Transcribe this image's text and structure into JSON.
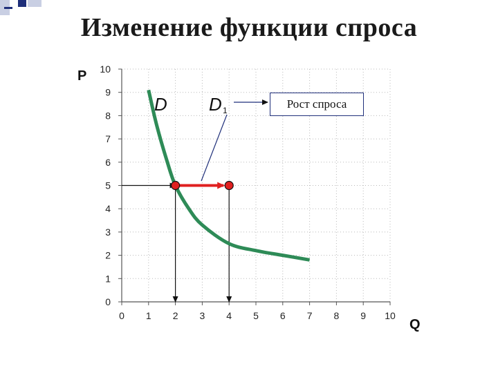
{
  "slide": {
    "title": "Изменение функции спроса"
  },
  "callout": {
    "text": "Рост спроса"
  },
  "chart_data": {
    "type": "line",
    "title": "Изменение функции спроса",
    "xlabel": "Q",
    "ylabel": "P",
    "xlim": [
      0,
      10
    ],
    "ylim": [
      0,
      10
    ],
    "x_ticks": [
      "0",
      "1",
      "2",
      "3",
      "4",
      "5",
      "6",
      "7",
      "8",
      "9",
      "10"
    ],
    "y_ticks": [
      "0",
      "1",
      "2",
      "3",
      "4",
      "5",
      "6",
      "7",
      "8",
      "9",
      "10"
    ],
    "grid": "both, dotted",
    "series": [
      {
        "name": "D",
        "sub": "",
        "color": "#2e8b57",
        "x": [
          1.0,
          1.3,
          1.7,
          2.0,
          2.5,
          3.0,
          4.0,
          5.0,
          6.0,
          7.0
        ],
        "y": [
          9.1,
          7.6,
          6.0,
          5.0,
          4.0,
          3.3,
          2.5,
          2.2,
          2.0,
          1.8
        ]
      }
    ],
    "curve_labels": [
      {
        "text": "D",
        "sub": ""
      },
      {
        "text": "D",
        "sub": "1"
      }
    ],
    "points": [
      {
        "x": 2,
        "y": 5,
        "color": "#e02020"
      },
      {
        "x": 4,
        "y": 5,
        "color": "#e02020"
      }
    ],
    "shift_arrow": {
      "from": [
        2,
        5
      ],
      "to": [
        4,
        5
      ],
      "color": "#e02020"
    },
    "guide_lines": [
      {
        "from": [
          0,
          5
        ],
        "to": [
          2,
          5
        ]
      },
      {
        "from": [
          2,
          5
        ],
        "to": [
          2,
          0
        ]
      },
      {
        "from": [
          4,
          5
        ],
        "to": [
          4,
          0
        ]
      }
    ]
  }
}
